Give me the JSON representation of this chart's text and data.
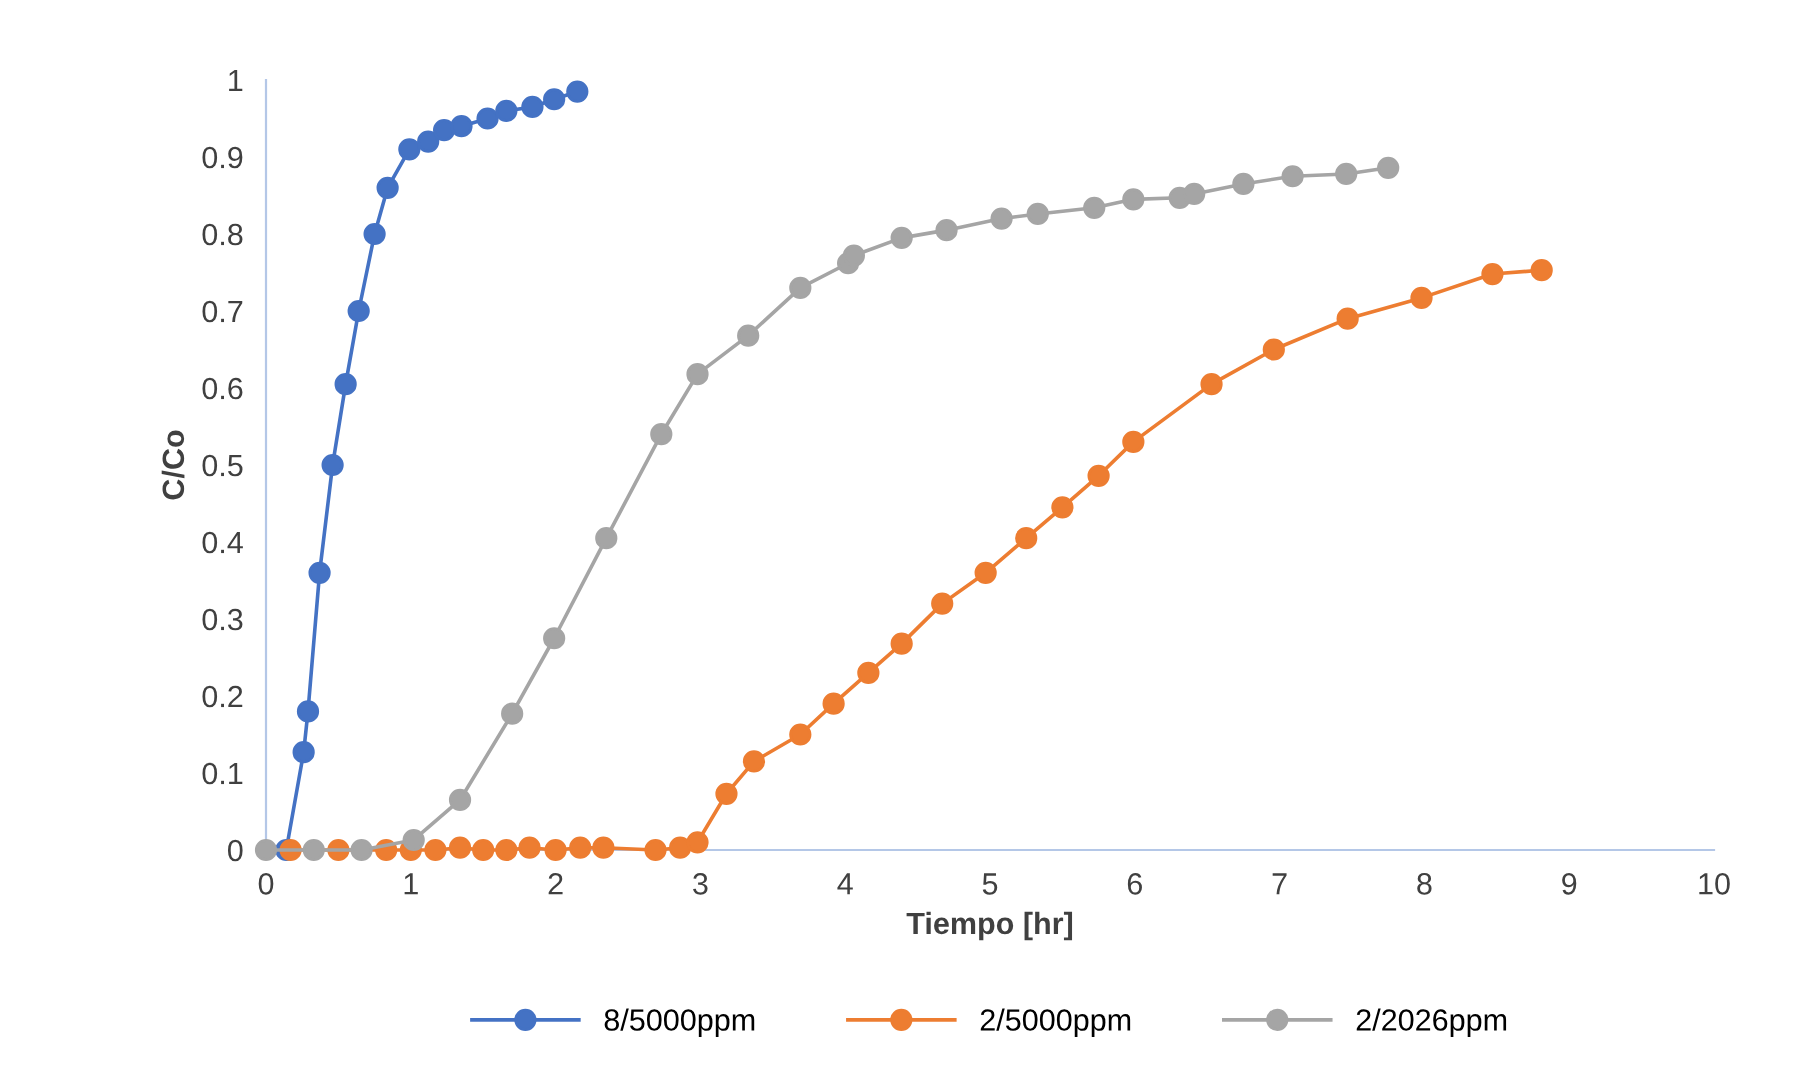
{
  "chart_data": {
    "type": "line",
    "xlabel": "Tiempo [hr]",
    "ylabel": "C/Co",
    "xlim": [
      0,
      10
    ],
    "xticks": [
      0,
      1,
      2,
      3,
      4,
      5,
      6,
      7,
      8,
      9,
      10
    ],
    "ylim": [
      0,
      1
    ],
    "yticks": [
      0,
      0.1,
      0.2,
      0.3,
      0.4,
      0.5,
      0.6,
      0.7,
      0.8,
      0.9,
      1
    ],
    "marker": "circle",
    "line_style": "solid",
    "legend": "bottom",
    "grid": false,
    "series": [
      {
        "name": "8/5000ppm",
        "color": "#4472c4",
        "x": [
          0.14,
          0.26,
          0.29,
          0.37,
          0.46,
          0.55,
          0.64,
          0.75,
          0.84,
          0.99,
          1.12,
          1.23,
          1.35,
          1.53,
          1.66,
          1.84,
          1.99,
          2.15
        ],
        "values": [
          0,
          0.127,
          0.18,
          0.36,
          0.5,
          0.605,
          0.7,
          0.8,
          0.86,
          0.91,
          0.92,
          0.935,
          0.94,
          0.95,
          0.96,
          0.965,
          0.975,
          0.985
        ]
      },
      {
        "name": "2/5000ppm",
        "color": "#ed7d31",
        "x": [
          0.17,
          0.5,
          0.83,
          1.0,
          1.17,
          1.34,
          1.5,
          1.66,
          1.82,
          2.0,
          2.17,
          2.33,
          2.69,
          2.86,
          2.98,
          3.18,
          3.37,
          3.69,
          3.92,
          4.16,
          4.39,
          4.67,
          4.97,
          5.25,
          5.5,
          5.75,
          5.99,
          6.53,
          6.96,
          7.47,
          7.98,
          8.47,
          8.81
        ],
        "values": [
          0,
          0,
          0,
          0,
          0,
          0.003,
          0,
          0,
          0.003,
          0,
          0.003,
          0.003,
          0,
          0.003,
          0.01,
          0.073,
          0.115,
          0.15,
          0.19,
          0.23,
          0.268,
          0.32,
          0.36,
          0.405,
          0.445,
          0.486,
          0.53,
          0.605,
          0.65,
          0.69,
          0.717,
          0.748,
          0.753
        ]
      },
      {
        "name": "2/2026ppm",
        "color": "#a5a5a5",
        "x": [
          0,
          0.33,
          0.66,
          1.02,
          1.34,
          1.7,
          1.99,
          2.35,
          2.73,
          2.98,
          3.33,
          3.69,
          4.02,
          4.06,
          4.39,
          4.7,
          5.08,
          5.33,
          5.72,
          5.99,
          6.31,
          6.41,
          6.75,
          7.09,
          7.46,
          7.75
        ],
        "values": [
          0,
          0,
          0,
          0.013,
          0.065,
          0.177,
          0.275,
          0.405,
          0.54,
          0.618,
          0.668,
          0.73,
          0.762,
          0.772,
          0.795,
          0.805,
          0.82,
          0.826,
          0.834,
          0.845,
          0.847,
          0.852,
          0.865,
          0.875,
          0.878,
          0.886
        ]
      }
    ]
  }
}
